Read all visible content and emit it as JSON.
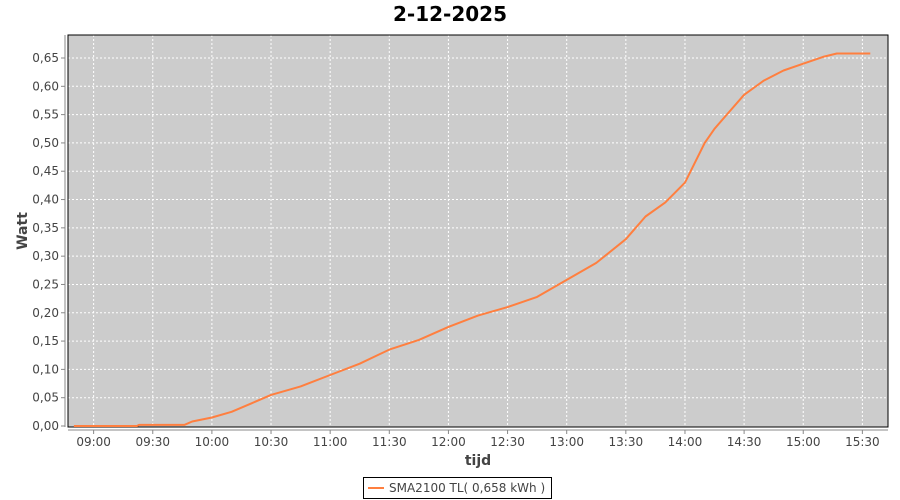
{
  "chart_data": {
    "type": "line",
    "title": "2-12-2025",
    "xlabel": "tijd",
    "ylabel": "Watt",
    "xlim": [
      "08:47",
      "15:43"
    ],
    "ylim": [
      0,
      0.68
    ],
    "grid": true,
    "legend_placement": "bottom",
    "x_ticks": [
      "09:00",
      "09:30",
      "10:00",
      "10:30",
      "11:00",
      "11:30",
      "12:00",
      "12:30",
      "13:00",
      "13:30",
      "14:00",
      "14:30",
      "15:00",
      "15:30"
    ],
    "y_ticks": [
      "0,00",
      "0,05",
      "0,10",
      "0,15",
      "0,20",
      "0,25",
      "0,30",
      "0,35",
      "0,40",
      "0,45",
      "0,50",
      "0,55",
      "0,60",
      "0,65"
    ],
    "colors": {
      "plot_background": "#cccccc",
      "grid": "#ffffff",
      "series": "#ff7f3f"
    },
    "series": [
      {
        "name": "SMA2100 TL( 0,658 kWh )",
        "x": [
          "08:50",
          "09:22",
          "09:23",
          "09:46",
          "09:50",
          "10:00",
          "10:10",
          "10:20",
          "10:30",
          "10:45",
          "11:00",
          "11:15",
          "11:30",
          "11:45",
          "12:00",
          "12:15",
          "12:30",
          "12:45",
          "13:00",
          "13:15",
          "13:30",
          "13:40",
          "13:50",
          "14:00",
          "14:10",
          "14:15",
          "14:20",
          "14:30",
          "14:40",
          "14:50",
          "15:00",
          "15:10",
          "15:17",
          "15:34"
        ],
        "y": [
          0,
          0,
          0.002,
          0.002,
          0.008,
          0.015,
          0.025,
          0.04,
          0.055,
          0.07,
          0.09,
          0.11,
          0.135,
          0.152,
          0.175,
          0.195,
          0.21,
          0.228,
          0.258,
          0.288,
          0.33,
          0.37,
          0.395,
          0.43,
          0.5,
          0.525,
          0.545,
          0.585,
          0.61,
          0.628,
          0.64,
          0.652,
          0.658,
          0.658
        ]
      }
    ]
  }
}
